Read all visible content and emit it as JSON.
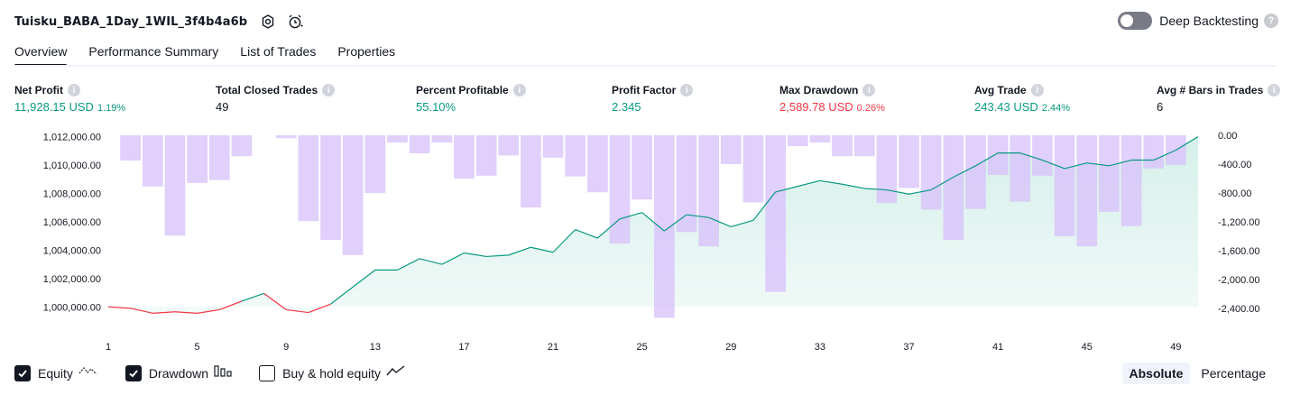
{
  "header": {
    "strategy_name": "Tuisku_BABA_1Day_1WIL_3f4b4a6b",
    "deep_backtesting_label": "Deep Backtesting",
    "deep_backtesting_on": false
  },
  "tabs": [
    {
      "label": "Overview",
      "active": true
    },
    {
      "label": "Performance Summary",
      "active": false
    },
    {
      "label": "List of Trades",
      "active": false
    },
    {
      "label": "Properties",
      "active": false
    }
  ],
  "metrics": {
    "net_profit": {
      "label": "Net Profit",
      "value": "11,928.15 USD",
      "pct": "1.19%"
    },
    "total_closed_trades": {
      "label": "Total Closed Trades",
      "value": "49"
    },
    "percent_profitable": {
      "label": "Percent Profitable",
      "value": "55.10%"
    },
    "profit_factor": {
      "label": "Profit Factor",
      "value": "2.345"
    },
    "max_drawdown": {
      "label": "Max Drawdown",
      "value": "2,589.78 USD",
      "pct": "0.26%"
    },
    "avg_trade": {
      "label": "Avg Trade",
      "value": "243.43 USD",
      "pct": "2.44%"
    },
    "avg_bars": {
      "label": "Avg # Bars in Trades",
      "value": "6"
    }
  },
  "chart_data": {
    "type": "line",
    "x_ticks": [
      "1",
      "5",
      "9",
      "13",
      "17",
      "21",
      "25",
      "29",
      "33",
      "37",
      "41",
      "45",
      "49"
    ],
    "x_range": [
      1,
      50
    ],
    "left_axis": {
      "ylim": [
        999000,
        1012100
      ],
      "ticks": [
        "1,012,000.00",
        "1,010,000.00",
        "1,008,000.00",
        "1,006,000.00",
        "1,004,000.00",
        "1,002,000.00",
        "1,000,000.00"
      ],
      "tick_values": [
        1012000,
        1010000,
        1008000,
        1006000,
        1004000,
        1002000,
        1000000
      ]
    },
    "right_axis": {
      "ylim": [
        -2600,
        0
      ],
      "ticks": [
        "0.00",
        "-400.00",
        "-800.00",
        "-1,200.00",
        "-1,600.00",
        "-2,000.00",
        "-2,400.00"
      ],
      "tick_values": [
        0,
        -400,
        -800,
        -1200,
        -1600,
        -2000,
        -2400
      ]
    },
    "series": [
      {
        "name": "Equity",
        "x": [
          1,
          2,
          3,
          4,
          5,
          6,
          7,
          8,
          9,
          10,
          11,
          12,
          13,
          14,
          15,
          16,
          17,
          18,
          19,
          20,
          21,
          22,
          23,
          24,
          25,
          26,
          27,
          28,
          29,
          30,
          31,
          32,
          33,
          34,
          35,
          36,
          37,
          38,
          39,
          40,
          41,
          42,
          43,
          44,
          45,
          46,
          47,
          48,
          49,
          50
        ],
        "values": [
          1000000,
          999900,
          999550,
          999650,
          999550,
          999800,
          1000400,
          1000950,
          999800,
          999600,
          1000200,
          1001400,
          1002600,
          1002600,
          1003400,
          1003000,
          1003800,
          1003550,
          1003650,
          1004200,
          1003850,
          1005450,
          1004850,
          1006200,
          1006650,
          1005350,
          1006500,
          1006300,
          1005650,
          1006100,
          1008100,
          1008500,
          1008900,
          1008650,
          1008350,
          1008250,
          1007950,
          1008250,
          1009150,
          1009950,
          1010850,
          1010850,
          1010350,
          1009750,
          1010150,
          1009950,
          1010350,
          1010350,
          1011050,
          1012000
        ],
        "color_up": "#089981",
        "color_down": "#f23645"
      },
      {
        "name": "Drawdown",
        "x": [
          1,
          2,
          3,
          4,
          5,
          6,
          7,
          8,
          9,
          10,
          11,
          12,
          13,
          14,
          15,
          16,
          17,
          18,
          19,
          20,
          21,
          22,
          23,
          24,
          25,
          26,
          27,
          28,
          29,
          30,
          31,
          32,
          33,
          34,
          35,
          36,
          37,
          38,
          39,
          40,
          41,
          42,
          43,
          44,
          45,
          46,
          47,
          48,
          49,
          50
        ],
        "values": [
          0,
          -350,
          -710,
          -1390,
          -660,
          -620,
          -290,
          0,
          -40,
          -1190,
          -1450,
          -1660,
          -800,
          -100,
          -250,
          -100,
          -600,
          -560,
          -280,
          -1000,
          -310,
          -570,
          -790,
          -1500,
          -890,
          -2530,
          -1340,
          -1540,
          -400,
          -930,
          -2170,
          -150,
          -100,
          -290,
          -290,
          -940,
          -730,
          -1030,
          -1450,
          -1020,
          -550,
          -920,
          -560,
          -1400,
          -1540,
          -1060,
          -1260,
          -460,
          -410,
          0
        ],
        "color": "#b388ff"
      }
    ],
    "colors": {
      "equity_up": "#089981",
      "equity_down": "#f23645",
      "drawdown_bar": "#d9c2fb",
      "area_fill_up": "#d6f0ea",
      "area_fill_down": "#fde5e8"
    }
  },
  "legend": {
    "equity_label": "Equity",
    "drawdown_label": "Drawdown",
    "buy_hold_label": "Buy & hold equity",
    "equity_checked": true,
    "drawdown_checked": true,
    "buy_hold_checked": false
  },
  "modes": {
    "absolute_label": "Absolute",
    "percentage_label": "Percentage",
    "active": "Absolute"
  }
}
